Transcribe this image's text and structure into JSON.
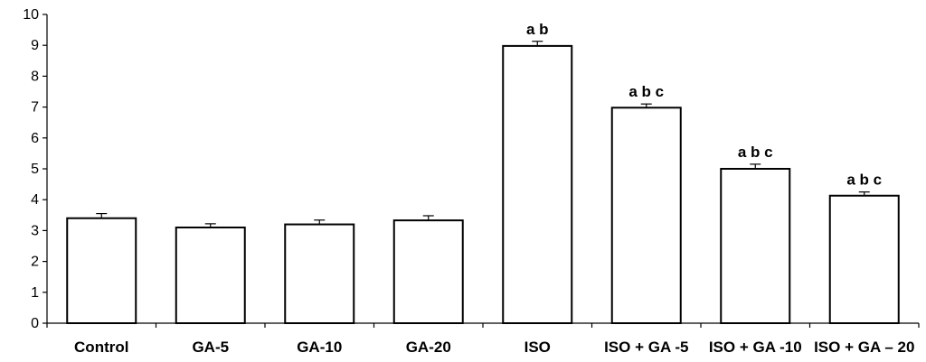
{
  "chart_data": {
    "type": "bar",
    "categories": [
      "Control",
      "GA-5",
      "GA-10",
      "GA-20",
      "ISO",
      "ISO + GA -5",
      "ISO + GA -10",
      "ISO + GA – 20"
    ],
    "values": [
      3.4,
      3.1,
      3.2,
      3.33,
      8.98,
      6.98,
      5.0,
      4.13
    ],
    "errors": [
      0.15,
      0.12,
      0.14,
      0.15,
      0.15,
      0.12,
      0.15,
      0.12
    ],
    "annotations": [
      "",
      "",
      "",
      "",
      "a b",
      "a b c",
      "a b c",
      "a b c"
    ],
    "yticks": [
      "0",
      "1",
      "2",
      "3",
      "4",
      "5",
      "6",
      "7",
      "8",
      "9",
      "10"
    ],
    "ylim": [
      0,
      10
    ],
    "grid": false,
    "bar_fill": "#ffffff",
    "bar_stroke": "#000000",
    "title": "",
    "xlabel": "",
    "ylabel": ""
  }
}
